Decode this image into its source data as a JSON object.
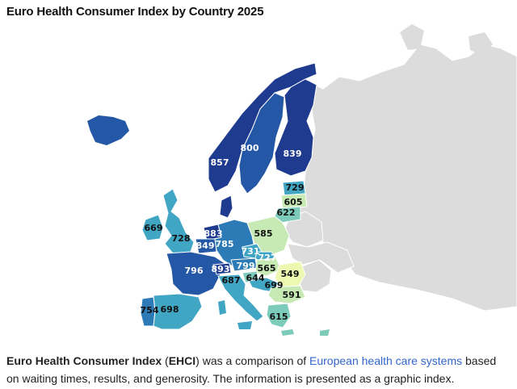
{
  "title": "Euro Health Consumer Index by Country 2025",
  "colors": {
    "gray": "#dcdcdc",
    "darkest": "#1f3b8f",
    "dark": "#2557a7",
    "mid_blue": "#2c7bb6",
    "teal": "#41a6c4",
    "light_teal": "#7dcbbb",
    "pale_green": "#c7e9b4",
    "lightest": "#edf8b1",
    "link": "#3366cc"
  },
  "regions": [
    {
      "id": "norway",
      "value": "857",
      "color": "#1f3b8f",
      "text_color": "#ffffff"
    },
    {
      "id": "sweden",
      "value": "800",
      "color": "#2557a7",
      "text_color": "#ffffff"
    },
    {
      "id": "finland",
      "value": "839",
      "color": "#1f3b8f",
      "text_color": "#ffffff"
    },
    {
      "id": "estonia",
      "value": "729",
      "color": "#41a6c4",
      "text_color": "#111111"
    },
    {
      "id": "latvia",
      "value": "605",
      "color": "#c7e9b4",
      "text_color": "#111111"
    },
    {
      "id": "lithuania",
      "value": "622",
      "color": "#7dcbbb",
      "text_color": "#111111"
    },
    {
      "id": "ireland",
      "value": "669",
      "color": "#41a6c4",
      "text_color": "#111111"
    },
    {
      "id": "uk",
      "value": "728",
      "color": "#41a6c4",
      "text_color": "#111111"
    },
    {
      "id": "netherlands",
      "value": "883",
      "color": "#1f3b8f",
      "text_color": "#ffffff"
    },
    {
      "id": "belgium",
      "value": "849",
      "color": "#2557a7",
      "text_color": "#ffffff"
    },
    {
      "id": "germany",
      "value": "785",
      "color": "#2c7bb6",
      "text_color": "#ffffff"
    },
    {
      "id": "poland",
      "value": "585",
      "color": "#c7e9b4",
      "text_color": "#111111"
    },
    {
      "id": "czech",
      "value": "731",
      "color": "#41a6c4",
      "text_color": "#ffffff"
    },
    {
      "id": "slovakia",
      "value": "727",
      "color": "#41a6c4",
      "text_color": "#ffffff"
    },
    {
      "id": "france",
      "value": "796",
      "color": "#2557a7",
      "text_color": "#ffffff"
    },
    {
      "id": "switzerland",
      "value": "893",
      "color": "#1f3b8f",
      "text_color": "#ffffff"
    },
    {
      "id": "austria",
      "value": "799",
      "color": "#2c7bb6",
      "text_color": "#ffffff"
    },
    {
      "id": "hungary",
      "value": "565",
      "color": "#c7e9b4",
      "text_color": "#111111"
    },
    {
      "id": "romania",
      "value": "549",
      "color": "#edf8b1",
      "text_color": "#111111"
    },
    {
      "id": "slovenia",
      "value": "644",
      "color": "#7dcbbb",
      "text_color": "#111111"
    },
    {
      "id": "croatia",
      "value": "699",
      "color": "#41a6c4",
      "text_color": "#111111"
    },
    {
      "id": "serbia",
      "value": "591",
      "color": "#c7e9b4",
      "text_color": "#111111"
    },
    {
      "id": "italy",
      "value": "687",
      "color": "#41a6c4",
      "text_color": "#111111"
    },
    {
      "id": "portugal",
      "value": "754",
      "color": "#2c7bb6",
      "text_color": "#111111"
    },
    {
      "id": "spain",
      "value": "698",
      "color": "#41a6c4",
      "text_color": "#111111"
    },
    {
      "id": "greece",
      "value": "615",
      "color": "#7dcbbb",
      "text_color": "#111111"
    }
  ],
  "caption": {
    "term": "Euro Health Consumer Index",
    "abbr_open": " (",
    "abbr": "EHCI",
    "text1": ") was a comparison of ",
    "link": "European health care systems",
    "text2": " based on waiting times, results, and generosity. The information is presented as a graphic index."
  }
}
